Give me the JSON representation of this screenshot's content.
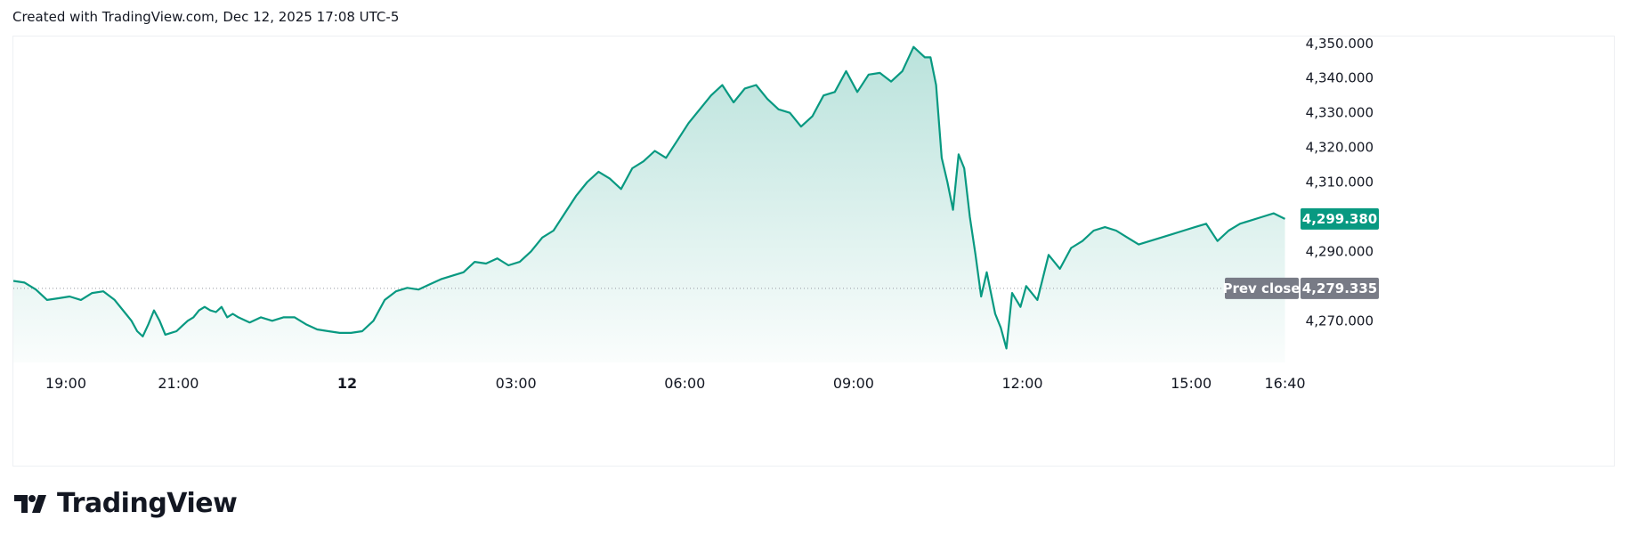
{
  "header": {
    "created_text": "Created with TradingView.com, Dec 12, 2025 17:08 UTC-5"
  },
  "brand": {
    "name": "TradingView",
    "logo_icon": "tradingview-logo-icon"
  },
  "colors": {
    "line": "#089981",
    "fill_top": "#089981",
    "badge_current": "#089981",
    "badge_prev": "#787b86",
    "prev_line": "#9598a1"
  },
  "chart_data": {
    "type": "area",
    "title": "",
    "xlabel": "",
    "ylabel": "",
    "x_unit": "hours since Dec 11 18:00 UTC-5",
    "xlim": [
      0,
      22.75
    ],
    "ylim": [
      4258,
      4352
    ],
    "y_ticks": [
      4350,
      4340,
      4330,
      4320,
      4310,
      4290,
      4270
    ],
    "y_tick_labels": [
      "4,350.000",
      "4,340.000",
      "4,330.000",
      "4,320.000",
      "4,310.000",
      "4,290.000",
      "4,270.000"
    ],
    "x_ticks": [
      {
        "x": 0.933,
        "label": "19:00",
        "bold": false
      },
      {
        "x": 2.933,
        "label": "21:00",
        "bold": false
      },
      {
        "x": 5.933,
        "label": "12",
        "bold": true
      },
      {
        "x": 8.933,
        "label": "03:00",
        "bold": false
      },
      {
        "x": 11.933,
        "label": "06:00",
        "bold": false
      },
      {
        "x": 14.933,
        "label": "09:00",
        "bold": false
      },
      {
        "x": 17.933,
        "label": "12:00",
        "bold": false
      },
      {
        "x": 20.933,
        "label": "15:00",
        "bold": false
      },
      {
        "x": 22.6,
        "label": "16:40",
        "bold": false
      }
    ],
    "current": {
      "value": 4299.38,
      "label": "4,299.380"
    },
    "prev_close": {
      "value": 4279.335,
      "label": "4,279.335",
      "tag": "Prev close"
    },
    "points": [
      [
        0.0,
        4281.5
      ],
      [
        0.2,
        4281
      ],
      [
        0.4,
        4279
      ],
      [
        0.6,
        4276
      ],
      [
        0.8,
        4276.5
      ],
      [
        1.0,
        4277
      ],
      [
        1.2,
        4276
      ],
      [
        1.4,
        4278
      ],
      [
        1.6,
        4278.5
      ],
      [
        1.8,
        4276
      ],
      [
        2.0,
        4272
      ],
      [
        2.1,
        4270
      ],
      [
        2.2,
        4267
      ],
      [
        2.3,
        4265.5
      ],
      [
        2.4,
        4269
      ],
      [
        2.5,
        4273
      ],
      [
        2.6,
        4270
      ],
      [
        2.7,
        4266
      ],
      [
        2.8,
        4266.5
      ],
      [
        2.9,
        4267
      ],
      [
        3.0,
        4268.5
      ],
      [
        3.1,
        4270
      ],
      [
        3.2,
        4271
      ],
      [
        3.3,
        4273
      ],
      [
        3.4,
        4274
      ],
      [
        3.5,
        4273
      ],
      [
        3.6,
        4272.5
      ],
      [
        3.7,
        4274
      ],
      [
        3.8,
        4271
      ],
      [
        3.9,
        4272
      ],
      [
        4.0,
        4271
      ],
      [
        4.2,
        4269.5
      ],
      [
        4.4,
        4271
      ],
      [
        4.6,
        4270
      ],
      [
        4.8,
        4271
      ],
      [
        5.0,
        4271
      ],
      [
        5.2,
        4269
      ],
      [
        5.4,
        4267.5
      ],
      [
        5.6,
        4267
      ],
      [
        5.8,
        4266.5
      ],
      [
        6.0,
        4266.5
      ],
      [
        6.2,
        4267
      ],
      [
        6.4,
        4270
      ],
      [
        6.6,
        4276
      ],
      [
        6.8,
        4278.5
      ],
      [
        7.0,
        4279.5
      ],
      [
        7.2,
        4279
      ],
      [
        7.4,
        4280.5
      ],
      [
        7.6,
        4282
      ],
      [
        7.8,
        4283
      ],
      [
        8.0,
        4284
      ],
      [
        8.2,
        4287
      ],
      [
        8.4,
        4286.5
      ],
      [
        8.6,
        4288
      ],
      [
        8.8,
        4286
      ],
      [
        9.0,
        4287
      ],
      [
        9.2,
        4290
      ],
      [
        9.4,
        4294
      ],
      [
        9.6,
        4296
      ],
      [
        9.8,
        4301
      ],
      [
        10.0,
        4306
      ],
      [
        10.2,
        4310
      ],
      [
        10.4,
        4313
      ],
      [
        10.6,
        4311
      ],
      [
        10.8,
        4308
      ],
      [
        11.0,
        4314
      ],
      [
        11.2,
        4316
      ],
      [
        11.4,
        4319
      ],
      [
        11.6,
        4317
      ],
      [
        11.8,
        4322
      ],
      [
        12.0,
        4327
      ],
      [
        12.2,
        4331
      ],
      [
        12.4,
        4335
      ],
      [
        12.6,
        4338
      ],
      [
        12.8,
        4333
      ],
      [
        13.0,
        4337
      ],
      [
        13.2,
        4338
      ],
      [
        13.4,
        4334
      ],
      [
        13.6,
        4331
      ],
      [
        13.8,
        4330
      ],
      [
        14.0,
        4326
      ],
      [
        14.2,
        4329
      ],
      [
        14.4,
        4335
      ],
      [
        14.6,
        4336
      ],
      [
        14.8,
        4342
      ],
      [
        15.0,
        4336
      ],
      [
        15.2,
        4341
      ],
      [
        15.4,
        4341.5
      ],
      [
        15.6,
        4339
      ],
      [
        15.8,
        4342
      ],
      [
        16.0,
        4349
      ],
      [
        16.2,
        4346
      ],
      [
        16.3,
        4346
      ],
      [
        16.4,
        4338
      ],
      [
        16.5,
        4317
      ],
      [
        16.6,
        4310
      ],
      [
        16.7,
        4302
      ],
      [
        16.8,
        4318
      ],
      [
        16.9,
        4314
      ],
      [
        17.0,
        4300
      ],
      [
        17.1,
        4289
      ],
      [
        17.2,
        4277
      ],
      [
        17.3,
        4284
      ],
      [
        17.4,
        4276
      ],
      [
        17.45,
        4272
      ],
      [
        17.55,
        4268
      ],
      [
        17.65,
        4262
      ],
      [
        17.75,
        4278
      ],
      [
        17.9,
        4274
      ],
      [
        18.0,
        4280
      ],
      [
        18.2,
        4276
      ],
      [
        18.4,
        4289
      ],
      [
        18.6,
        4285
      ],
      [
        18.8,
        4291
      ],
      [
        19.0,
        4293
      ],
      [
        19.2,
        4296
      ],
      [
        19.4,
        4297
      ],
      [
        19.6,
        4296
      ],
      [
        19.8,
        4294
      ],
      [
        20.0,
        4292
      ],
      [
        20.2,
        4293
      ],
      [
        20.4,
        4294
      ],
      [
        20.6,
        4295
      ],
      [
        20.8,
        4296
      ],
      [
        21.0,
        4297
      ],
      [
        21.2,
        4298
      ],
      [
        21.4,
        4293
      ],
      [
        21.6,
        4296
      ],
      [
        21.8,
        4298
      ],
      [
        22.0,
        4299
      ],
      [
        22.2,
        4300
      ],
      [
        22.4,
        4301
      ],
      [
        22.6,
        4299.38
      ]
    ]
  }
}
